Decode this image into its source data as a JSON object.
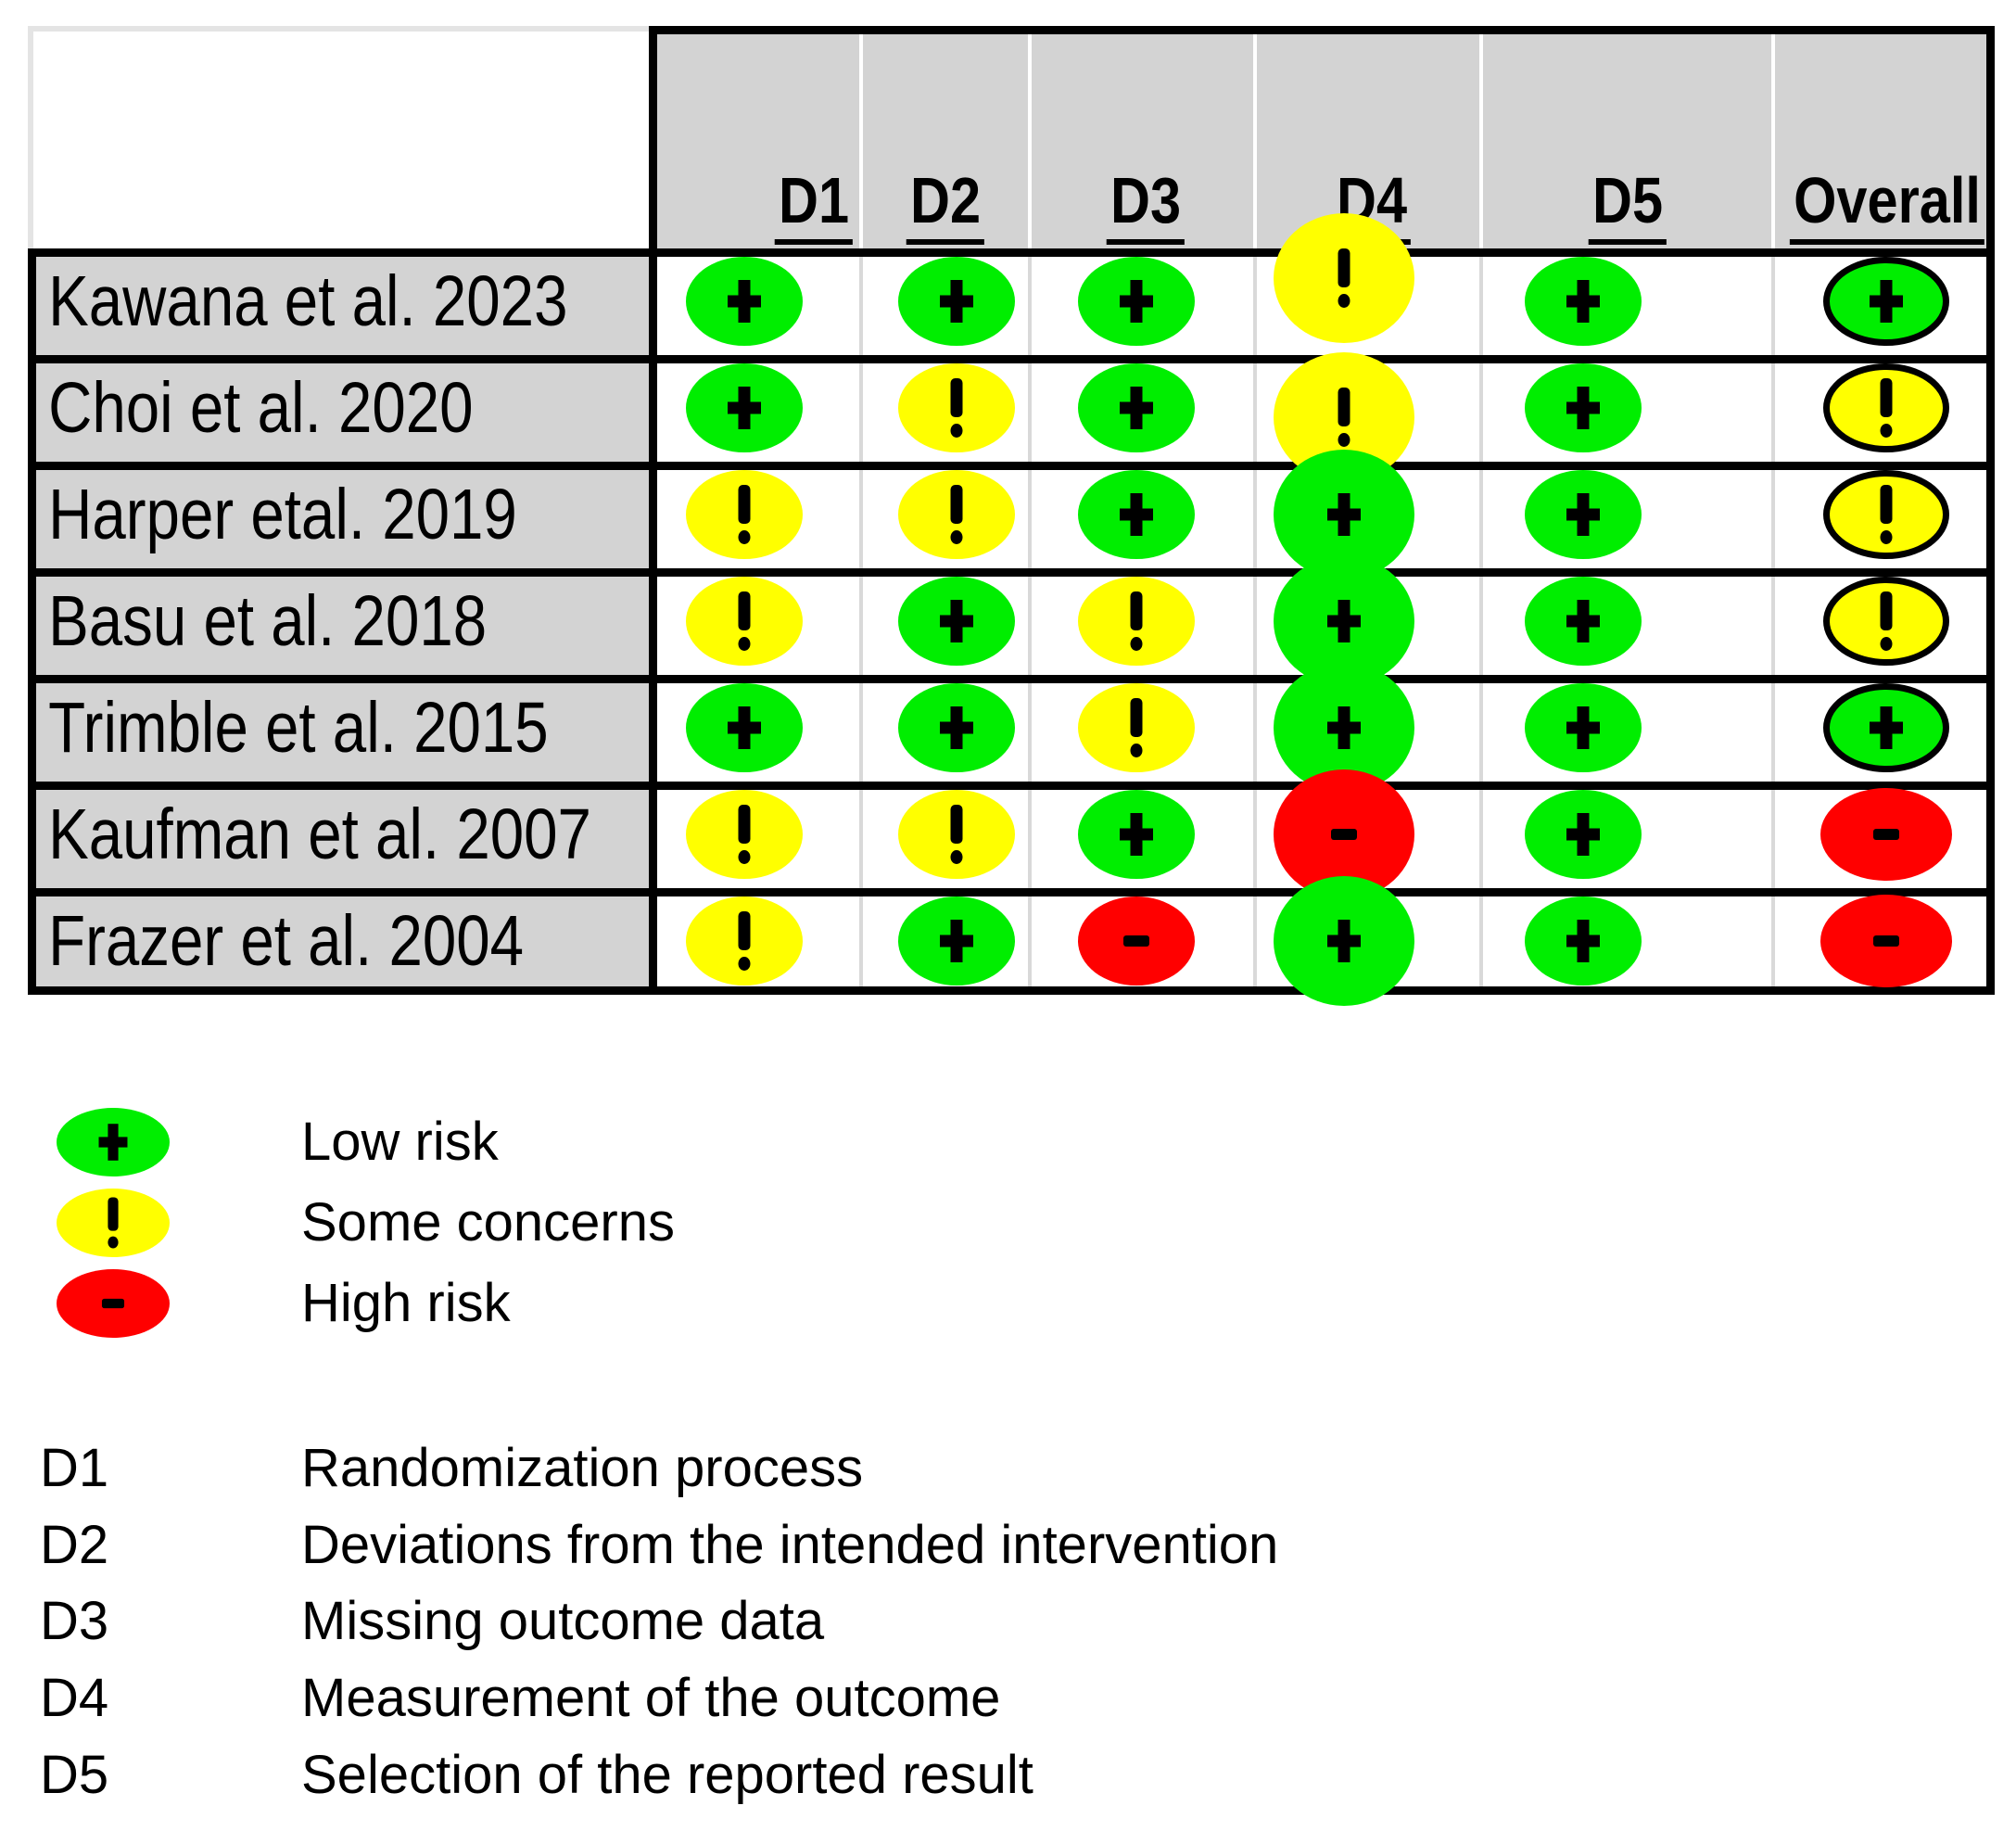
{
  "table": {
    "columns": [
      "D1",
      "D2",
      "D3",
      "D4",
      "D5",
      "Overall"
    ],
    "rows": [
      {
        "study": "Kawana et al. 2023",
        "ratings": [
          "low",
          "low",
          "low",
          "some",
          "low",
          "low"
        ]
      },
      {
        "study": "Choi et al. 2020",
        "ratings": [
          "low",
          "some",
          "low",
          "some",
          "low",
          "some"
        ]
      },
      {
        "study": "Harper etal. 2019",
        "ratings": [
          "some",
          "some",
          "low",
          "low",
          "low",
          "some"
        ]
      },
      {
        "study": "Basu et al. 2018",
        "ratings": [
          "some",
          "low",
          "some",
          "low",
          "low",
          "some"
        ]
      },
      {
        "study": "Trimble et al. 2015",
        "ratings": [
          "low",
          "low",
          "some",
          "low",
          "low",
          "low"
        ]
      },
      {
        "study": "Kaufman et al. 2007",
        "ratings": [
          "some",
          "some",
          "low",
          "high",
          "low",
          "high"
        ]
      },
      {
        "study": "Frazer et al. 2004",
        "ratings": [
          "some",
          "low",
          "high",
          "low",
          "low",
          "high"
        ]
      }
    ]
  },
  "legend": {
    "items": [
      {
        "rating": "low",
        "symbol": "+",
        "label": "Low risk"
      },
      {
        "rating": "some",
        "symbol": "!",
        "label": "Some concerns"
      },
      {
        "rating": "high",
        "symbol": "-",
        "label": "High risk"
      }
    ]
  },
  "definitions": {
    "items": [
      {
        "id": "D1",
        "label": "Randomization process"
      },
      {
        "id": "D2",
        "label": "Deviations from the intended intervention"
      },
      {
        "id": "D3",
        "label": "Missing outcome data"
      },
      {
        "id": "D4",
        "label": "Measurement of the outcome"
      },
      {
        "id": "D5",
        "label": "Selection of the reported result"
      }
    ]
  },
  "colors": {
    "low": "#00ee00",
    "some": "#ffff00",
    "high": "#ff0000",
    "ring": "#000000",
    "header_bg": "#d3d3d3"
  },
  "chart_data": {
    "type": "table",
    "categories": [
      "Kawana et al. 2023",
      "Choi et al. 2020",
      "Harper etal. 2019",
      "Basu et al. 2018",
      "Trimble et al. 2015",
      "Kaufman et al. 2007",
      "Frazer et al. 2004"
    ],
    "series": [
      {
        "name": "D1",
        "values": [
          "low",
          "low",
          "some",
          "some",
          "low",
          "some",
          "some"
        ]
      },
      {
        "name": "D2",
        "values": [
          "low",
          "some",
          "some",
          "low",
          "low",
          "some",
          "low"
        ]
      },
      {
        "name": "D3",
        "values": [
          "low",
          "low",
          "low",
          "some",
          "some",
          "low",
          "high"
        ]
      },
      {
        "name": "D4",
        "values": [
          "some",
          "some",
          "low",
          "low",
          "low",
          "high",
          "low"
        ]
      },
      {
        "name": "D5",
        "values": [
          "low",
          "low",
          "low",
          "low",
          "low",
          "low",
          "low"
        ]
      },
      {
        "name": "Overall",
        "values": [
          "low",
          "some",
          "some",
          "some",
          "low",
          "high",
          "high"
        ]
      }
    ],
    "legend_entries": [
      "Low risk",
      "Some concerns",
      "High risk"
    ],
    "layout": "risk-of-bias traffic light plot; grey header row and grey study column; judgement ovals green/yellow/red with +/!/- symbols; Overall column ovals outlined in black except high-risk ones"
  }
}
